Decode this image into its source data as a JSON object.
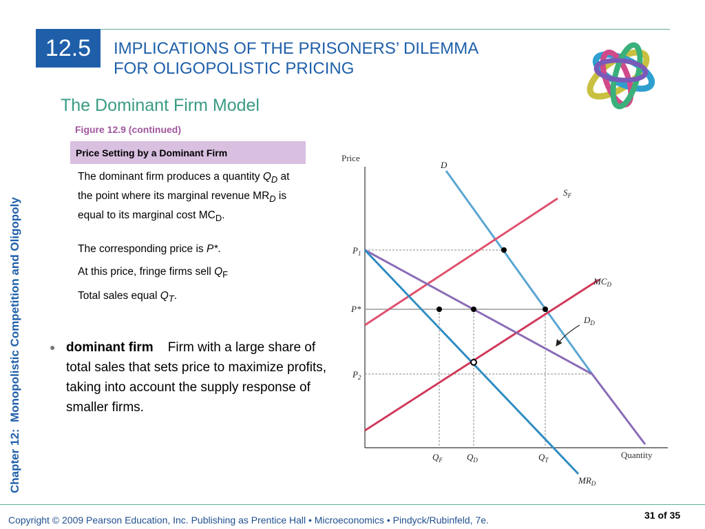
{
  "slide": {
    "section_number": "12.5",
    "title_line1": "IMPLICATIONS OF THE PRISONERS’ DILEMMA",
    "title_line2": "FOR OLIGOPOLISTIC PRICING",
    "subtitle": "The Dominant Firm Model",
    "side_label": "Chapter 12:",
    "side_label_topic": "Monopolistic Competition and Oligopoly"
  },
  "figure": {
    "number": "Figure 12.9 (continued)",
    "caption": "Price Setting by a Dominant Firm",
    "p1": {
      "a": "The dominant firm produces a quantity ",
      "q": "Q",
      "q_sub": "D",
      "b": " at the point where its marginal revenue MR",
      "mr_sub": "D",
      "c": " is equal to its marginal cost MC",
      "mc_sub": "D",
      "d": "."
    },
    "p2": {
      "a": "The corresponding price is ",
      "p": "P*",
      "b": "."
    },
    "p3": {
      "a": "At this price, fringe firms sell ",
      "q": "Q",
      "q_sub": "F"
    },
    "p4": {
      "a": "Total sales equal ",
      "q": "Q",
      "q_sub": "T",
      "b": "."
    }
  },
  "definition": {
    "term": "dominant firm",
    "text": "Firm with a large share of total sales that sets price to maximize profits, taking into account the supply response of smaller firms."
  },
  "diagram": {
    "axis_y_label": "Price",
    "axis_x_label": "Quantity",
    "curves": {
      "D": {
        "base": "D",
        "sub": ""
      },
      "SF": {
        "base": "S",
        "sub": "F"
      },
      "MCD": {
        "base": "MC",
        "sub": "D"
      },
      "DD": {
        "base": "D",
        "sub": "D"
      },
      "MRD": {
        "base": "MR",
        "sub": "D"
      }
    },
    "price_ticks": {
      "P1": {
        "base": "P",
        "sub": "1"
      },
      "Pstar": {
        "base": "P*",
        "sub": ""
      },
      "P2": {
        "base": "P",
        "sub": "2"
      }
    },
    "quantity_ticks": {
      "QF": {
        "base": "Q",
        "sub": "F"
      },
      "QD": {
        "base": "Q",
        "sub": "D"
      },
      "QT": {
        "base": "Q",
        "sub": "T"
      }
    }
  },
  "footer": {
    "copyright": "Copyright © 2009 Pearson Education, Inc. Publishing as Prentice Hall  •  Microeconomics  •  Pindyck/Rubinfeld, 7e.",
    "page": "31 of 35"
  },
  "colors": {
    "brand_blue": "#1f5fa9",
    "teal": "#3a9b84",
    "caption_bg": "#d9bfe0",
    "demand_curve": "#5aa6d2",
    "supply_curve": "#e0506e",
    "dominant_demand": "#8a6bb6",
    "mr_curve": "#2f8cc2"
  }
}
